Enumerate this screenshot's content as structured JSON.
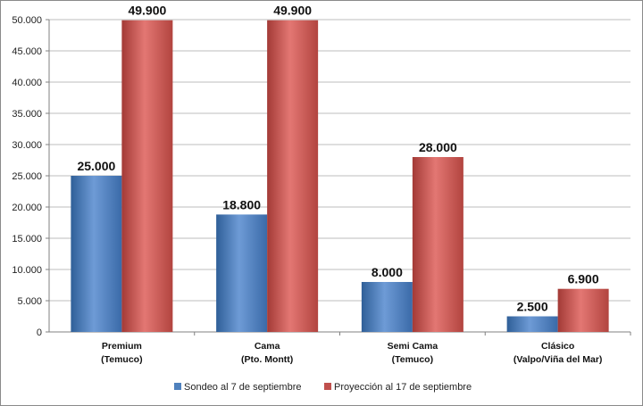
{
  "chart_data": {
    "type": "bar",
    "categories": [
      [
        "Premium",
        "(Temuco)"
      ],
      [
        "Cama",
        "(Pto. Montt)"
      ],
      [
        "Semi Cama",
        "(Temuco)"
      ],
      [
        "Clásico",
        "(Valpo/Viña del Mar)"
      ]
    ],
    "series": [
      {
        "name": "Sondeo al 7 de septiembre",
        "values": [
          25000,
          18800,
          8000,
          2500
        ],
        "labels": [
          "25.000",
          "18.800",
          "8.000",
          "2.500"
        ],
        "color": "#4f81bd"
      },
      {
        "name": "Proyección al 17 de septiembre",
        "values": [
          49900,
          49900,
          28000,
          6900
        ],
        "labels": [
          "49.900",
          "49.900",
          "28.000",
          "6.900"
        ],
        "color": "#c0504d"
      }
    ],
    "yticks": [
      0,
      5000,
      10000,
      15000,
      20000,
      25000,
      30000,
      35000,
      40000,
      45000,
      50000
    ],
    "ytick_labels": [
      "0",
      "5.000",
      "10.000",
      "15.000",
      "20.000",
      "25.000",
      "30.000",
      "35.000",
      "40.000",
      "45.000",
      "50.000"
    ],
    "ylim": [
      0,
      50000
    ],
    "grid": true,
    "legend": "bottom",
    "title": "",
    "xlabel": "",
    "ylabel": ""
  }
}
